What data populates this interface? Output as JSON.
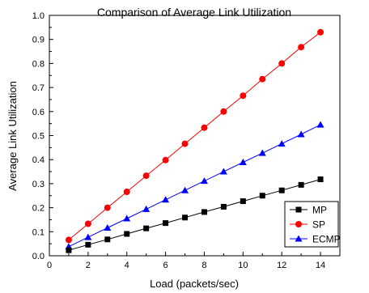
{
  "chart_data": {
    "type": "line",
    "title": "Comparison of Average Link Utilization",
    "xlabel": "Load (packets/sec)",
    "ylabel": "Average Link Utilization",
    "xlim": [
      0,
      15
    ],
    "ylim": [
      0,
      1.0
    ],
    "x_ticks": [
      "0",
      "2",
      "4",
      "6",
      "8",
      "10",
      "12",
      "14"
    ],
    "y_ticks": [
      "0.0",
      "0.1",
      "0.2",
      "0.3",
      "0.4",
      "0.5",
      "0.6",
      "0.7",
      "0.8",
      "0.9",
      "1.0"
    ],
    "x": [
      1,
      2,
      3,
      4,
      5,
      6,
      7,
      8,
      9,
      10,
      11,
      12,
      13,
      14
    ],
    "grid": false,
    "legend_position": "bottom-right",
    "series": [
      {
        "name": "MP",
        "color": "#000000",
        "marker": "square",
        "values": [
          0.023,
          0.046,
          0.068,
          0.091,
          0.114,
          0.136,
          0.159,
          0.182,
          0.204,
          0.227,
          0.25,
          0.272,
          0.295,
          0.318
        ]
      },
      {
        "name": "SP",
        "color": "#ff0000",
        "marker": "circle",
        "values": [
          0.066,
          0.133,
          0.2,
          0.266,
          0.333,
          0.398,
          0.466,
          0.533,
          0.6,
          0.666,
          0.735,
          0.8,
          0.868,
          0.93
        ]
      },
      {
        "name": "ECMP",
        "color": "#0000ff",
        "marker": "triangle",
        "values": [
          0.038,
          0.077,
          0.116,
          0.155,
          0.194,
          0.233,
          0.272,
          0.311,
          0.35,
          0.389,
          0.427,
          0.466,
          0.505,
          0.545
        ]
      }
    ]
  }
}
